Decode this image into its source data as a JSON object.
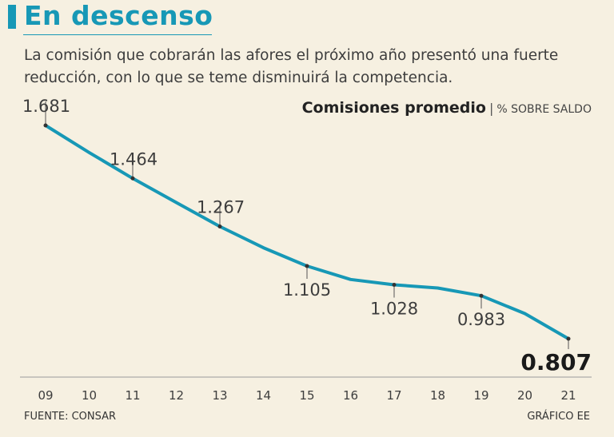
{
  "header": {
    "title": "En descenso",
    "subtitle": "La comisión que cobrarán las afores el próximo año presentó una fuerte reducción, con lo que se teme disminuirá la competencia."
  },
  "chart_data": {
    "type": "line",
    "title": "Comisiones promedio",
    "title_separator": "|",
    "unit_label": "% SOBRE SALDO",
    "categories": [
      "09",
      "10",
      "11",
      "12",
      "13",
      "14",
      "15",
      "16",
      "17",
      "18",
      "19",
      "20",
      "21"
    ],
    "series": [
      {
        "name": "Comisiones promedio",
        "values": [
          1.681,
          1.57,
          1.464,
          1.365,
          1.267,
          1.18,
          1.105,
          1.05,
          1.028,
          1.015,
          0.983,
          0.91,
          0.807
        ]
      }
    ],
    "data_labels": [
      {
        "category": "09",
        "text": "1.681",
        "position": "above"
      },
      {
        "category": "11",
        "text": "1.464",
        "position": "above"
      },
      {
        "category": "13",
        "text": "1.267",
        "position": "above"
      },
      {
        "category": "15",
        "text": "1.105",
        "position": "below"
      },
      {
        "category": "17",
        "text": "1.028",
        "position": "below"
      },
      {
        "category": "19",
        "text": "0.983",
        "position": "below"
      },
      {
        "category": "21",
        "text": "0.807",
        "position": "below",
        "emphasis": true
      }
    ],
    "ylim": [
      0.72,
      1.75
    ],
    "xlabel": "",
    "ylabel": "",
    "grid": false,
    "line_color": "#1798b6"
  },
  "footer": {
    "source": "FUENTE: CONSAR",
    "credit": "GRÁFICO EE"
  },
  "colors": {
    "accent": "#1798b6",
    "background": "#f6f0e1",
    "text": "#3d3d3d"
  }
}
